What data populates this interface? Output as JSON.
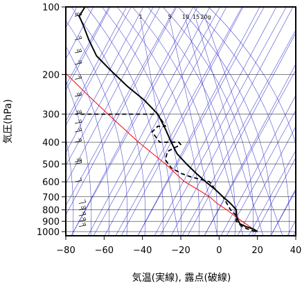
{
  "chart_data": {
    "type": "line",
    "title": "",
    "xlabel": "気温(実線), 露点(破線)",
    "ylabel": "気圧(hPa)",
    "xlim": [
      -80,
      40
    ],
    "ylim": [
      1050,
      100
    ],
    "y_scale": "log",
    "x_ticks": [
      -80,
      -60,
      -40,
      -20,
      0,
      20,
      40
    ],
    "x_tick_labels": [
      "−80",
      "−60",
      "−40",
      "−20",
      "0",
      "20",
      "40"
    ],
    "y_ticks": [
      100,
      200,
      300,
      400,
      500,
      600,
      700,
      800,
      900,
      1000
    ],
    "y_tick_labels": [
      "100",
      "200",
      "300",
      "400",
      "500",
      "600",
      "700",
      "800",
      "900",
      "1000"
    ],
    "mixing_ratio_labels": [
      "1",
      "5",
      "10",
      "15",
      "20g"
    ],
    "mixing_ratio_values": [
      1,
      5,
      10,
      15,
      20
    ],
    "colors": {
      "temperature": "#000000",
      "dewpoint": "#000000",
      "parcel": "#ff0000",
      "background_lines": "#3c3cd2",
      "grid": "#000000"
    },
    "series": [
      {
        "key": "temperature",
        "style": "solid",
        "points": [
          [
            20,
            1000
          ],
          [
            18,
            975
          ],
          [
            14,
            950
          ],
          [
            11,
            925
          ],
          [
            10,
            900
          ],
          [
            9,
            850
          ],
          [
            9,
            800
          ],
          [
            6,
            750
          ],
          [
            2,
            700
          ],
          [
            -2,
            650
          ],
          [
            -7,
            600
          ],
          [
            -12,
            550
          ],
          [
            -17,
            500
          ],
          [
            -22,
            450
          ],
          [
            -25,
            400
          ],
          [
            -28,
            350
          ],
          [
            -32,
            300
          ],
          [
            -39,
            260
          ],
          [
            -48,
            225
          ],
          [
            -57,
            190
          ],
          [
            -64,
            165
          ],
          [
            -68,
            140
          ],
          [
            -71,
            120
          ],
          [
            -73,
            110
          ],
          [
            -70,
            100
          ]
        ]
      },
      {
        "key": "dewpoint",
        "style": "dashed",
        "points": [
          [
            19,
            1000
          ],
          [
            15,
            975
          ],
          [
            12,
            950
          ],
          [
            9,
            900
          ],
          [
            9,
            850
          ],
          [
            6,
            800
          ],
          [
            2,
            700
          ],
          [
            -2,
            650
          ],
          [
            -5,
            600
          ],
          [
            -15,
            570
          ],
          [
            -20,
            550
          ],
          [
            -25,
            520
          ],
          [
            -28,
            480
          ],
          [
            -27,
            440
          ],
          [
            -20,
            410
          ],
          [
            -21,
            400
          ],
          [
            -31,
            400
          ],
          [
            -35,
            360
          ],
          [
            -32,
            340
          ],
          [
            -28,
            340
          ],
          [
            -32,
            300
          ],
          [
            -75,
            300
          ]
        ]
      },
      {
        "key": "parcel",
        "style": "solid",
        "points": [
          [
            20,
            1000
          ],
          [
            16,
            950
          ],
          [
            12,
            900
          ],
          [
            8,
            850
          ],
          [
            4,
            800
          ],
          [
            -1,
            750
          ],
          [
            -5,
            700
          ],
          [
            -11,
            650
          ],
          [
            -18,
            600
          ],
          [
            -28,
            500
          ],
          [
            -42,
            400
          ],
          [
            -58,
            300
          ],
          [
            -70,
            240
          ],
          [
            -82,
            190
          ]
        ]
      }
    ],
    "wind_barbs": [
      {
        "p": 110,
        "speed": 20
      },
      {
        "p": 140,
        "speed": 10
      },
      {
        "p": 160,
        "speed": 15
      },
      {
        "p": 180,
        "speed": 10
      },
      {
        "p": 210,
        "speed": 10
      },
      {
        "p": 250,
        "speed": 15
      },
      {
        "p": 300,
        "speed": 15
      },
      {
        "p": 330,
        "speed": 10
      },
      {
        "p": 360,
        "speed": 10
      },
      {
        "p": 400,
        "speed": 10
      },
      {
        "p": 490,
        "speed": 15
      },
      {
        "p": 500,
        "speed": 5
      },
      {
        "p": 600,
        "speed": 5
      },
      {
        "p": 750,
        "speed": 5
      },
      {
        "p": 800,
        "speed": 15
      },
      {
        "p": 850,
        "speed": 10
      },
      {
        "p": 900,
        "speed": 10
      },
      {
        "p": 950,
        "speed": 10
      }
    ]
  }
}
